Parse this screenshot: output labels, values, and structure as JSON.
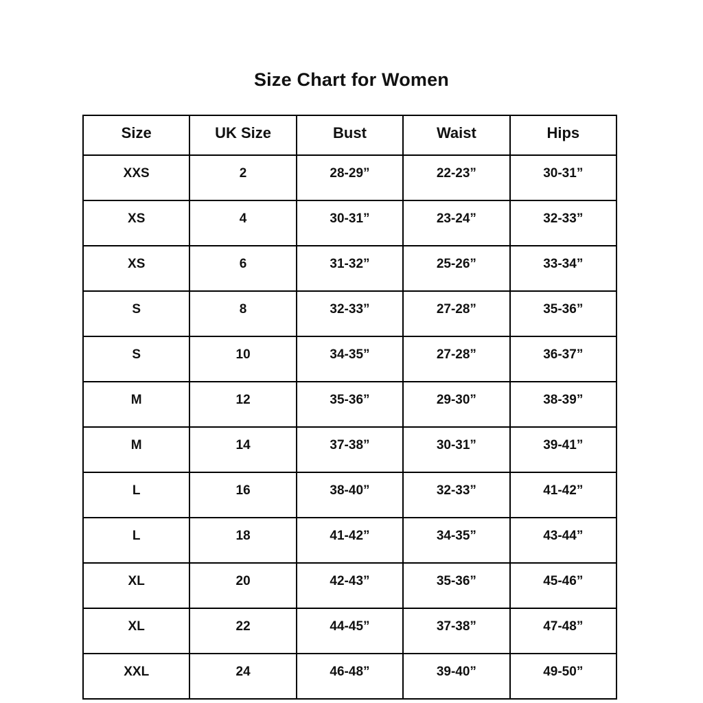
{
  "page": {
    "background": "#ffffff",
    "text_color": "#111111",
    "border_color": "#000000"
  },
  "chart_data": {
    "type": "table",
    "title": "Size Chart for Women",
    "headers": [
      "Size",
      "UK Size",
      "Bust",
      "Waist",
      "Hips"
    ],
    "rows": [
      [
        "XXS",
        "2",
        "28-29”",
        "22-23”",
        "30-31”"
      ],
      [
        "XS",
        "4",
        "30-31”",
        "23-24”",
        "32-33”"
      ],
      [
        "XS",
        "6",
        "31-32”",
        "25-26”",
        "33-34”"
      ],
      [
        "S",
        "8",
        "32-33”",
        "27-28”",
        "35-36”"
      ],
      [
        "S",
        "10",
        "34-35”",
        "27-28”",
        "36-37”"
      ],
      [
        "M",
        "12",
        "35-36”",
        "29-30”",
        "38-39”"
      ],
      [
        "M",
        "14",
        "37-38”",
        "30-31”",
        "39-41”"
      ],
      [
        "L",
        "16",
        "38-40”",
        "32-33”",
        "41-42”"
      ],
      [
        "L",
        "18",
        "41-42”",
        "34-35”",
        "43-44”"
      ],
      [
        "XL",
        "20",
        "42-43”",
        "35-36”",
        "45-46”"
      ],
      [
        "XL",
        "22",
        "44-45”",
        "37-38”",
        "47-48”"
      ],
      [
        "XXL",
        "24",
        "46-48”",
        "39-40”",
        "49-50”"
      ]
    ],
    "layout": {
      "grid": true,
      "columns_equal_width": true,
      "text_alignment": "center"
    }
  }
}
